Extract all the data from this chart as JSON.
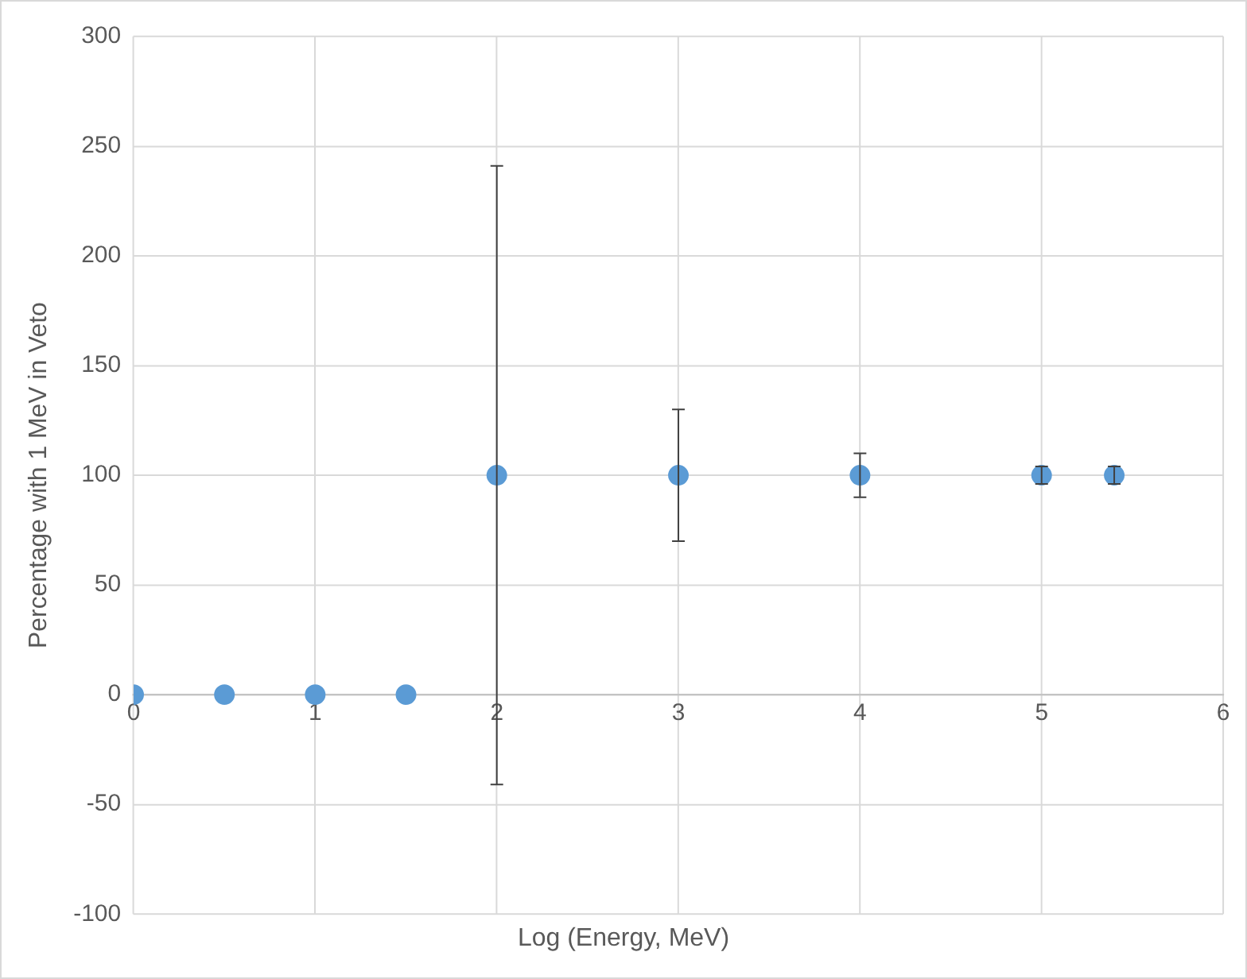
{
  "chart_data": {
    "type": "scatter",
    "xlabel": "Log (Energy, MeV)",
    "ylabel": "Percentage with 1 MeV in Veto",
    "x": [
      0,
      0.5,
      1,
      1.5,
      2,
      3,
      4,
      5,
      5.4
    ],
    "values": [
      0,
      0,
      0,
      0,
      100,
      100,
      100,
      100,
      100
    ],
    "errors": [
      null,
      null,
      null,
      null,
      141,
      30,
      10,
      4,
      4
    ],
    "color": "#5b9bd5",
    "marker": "circle",
    "grid": true,
    "legend": false,
    "xlim": [
      0,
      6
    ],
    "xticks": [
      0,
      1,
      2,
      3,
      4,
      5,
      6
    ],
    "ylim": [
      -100,
      300
    ],
    "yticks": [
      -100,
      -50,
      0,
      50,
      100,
      150,
      200,
      250,
      300
    ]
  }
}
